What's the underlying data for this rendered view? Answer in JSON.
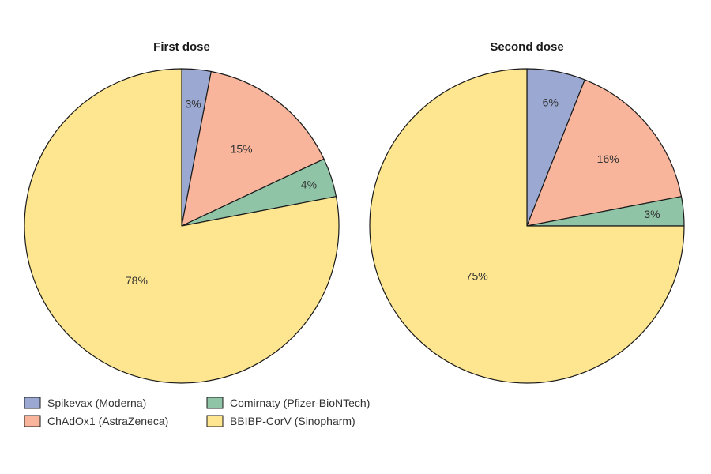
{
  "chart_data": [
    {
      "type": "pie",
      "title": "First dose",
      "categories": [
        "Spikevax (Moderna)",
        "ChAdOx1 (AstraZeneca)",
        "Comirnaty (Pfizer-BioNTech)",
        "BBIBP-CorV (Sinopharm)"
      ],
      "values": [
        3,
        15,
        4,
        78
      ],
      "labels": [
        "3%",
        "15%",
        "4%",
        "78%"
      ]
    },
    {
      "type": "pie",
      "title": "Second dose",
      "categories": [
        "Spikevax (Moderna)",
        "ChAdOx1 (AstraZeneca)",
        "Comirnaty (Pfizer-BioNTech)",
        "BBIBP-CorV (Sinopharm)"
      ],
      "values": [
        6,
        16,
        3,
        75
      ],
      "labels": [
        "6%",
        "16%",
        "3%",
        "75%"
      ]
    }
  ],
  "legend": {
    "placement": "bottom-left",
    "items": [
      {
        "label": "Spikevax (Moderna)",
        "color": "#9aa8d2"
      },
      {
        "label": "ChAdOx1 (AstraZeneca)",
        "color": "#f8b59c"
      },
      {
        "label": "Comirnaty (Pfizer-BioNTech)",
        "color": "#8fc4a6"
      },
      {
        "label": "BBIBP-CorV (Sinopharm)",
        "color": "#fde68f"
      }
    ]
  },
  "colors": {
    "outline": "#1a1a1a"
  }
}
